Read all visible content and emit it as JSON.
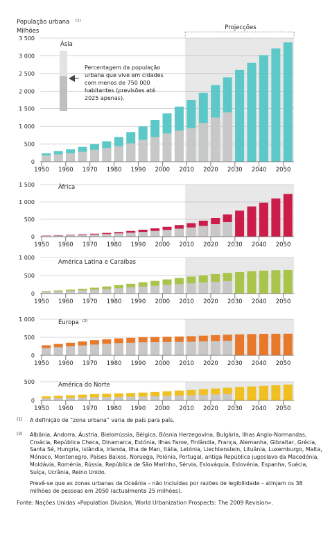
{
  "title": "População urbana",
  "title_note": "(1)",
  "unit": "Milhões",
  "projections_label": "Projecções",
  "colors": {
    "grey": "#c8c8c8",
    "shade": "#e8e8e8",
    "legend_light": "#e3e3e3",
    "legend_dark": "#bfbfbf"
  },
  "legend_text": [
    "Percentagem da população",
    "urbana que vive em cidades",
    "com menos de 750 000",
    "habitantes (previsões até",
    "2025 apenas)."
  ],
  "chart_data": [
    {
      "type": "bar",
      "title": "Ásia",
      "color": "#5cc8c8",
      "x": [
        1950,
        1955,
        1960,
        1965,
        1970,
        1975,
        1980,
        1985,
        1990,
        1995,
        2000,
        2005,
        2010,
        2015,
        2020,
        2025,
        2030,
        2035,
        2040,
        2045,
        2050
      ],
      "series": [
        {
          "values": [
            240,
            300,
            350,
            420,
            500,
            580,
            700,
            840,
            1000,
            1180,
            1370,
            1560,
            1750,
            1950,
            2170,
            2390,
            2600,
            2800,
            3020,
            3210,
            3380
          ]
        },
        {
          "values": [
            180,
            210,
            240,
            280,
            340,
            390,
            440,
            520,
            620,
            700,
            800,
            880,
            950,
            1100,
            1250,
            1400,
            null,
            null,
            null,
            null,
            null
          ]
        }
      ],
      "ylim": [
        0,
        3500
      ],
      "yticks": [
        "0",
        "500",
        "1 000",
        "1 500",
        "2 000",
        "2 500",
        "3 000",
        "3 500"
      ],
      "xticks": [
        "1950",
        "1960",
        "1970",
        "1980",
        "1990",
        "2000",
        "2010",
        "2020",
        "2030",
        "2040",
        "2050"
      ]
    },
    {
      "type": "bar",
      "title": "África",
      "color": "#cc1d4a",
      "x": [
        1950,
        1955,
        1960,
        1965,
        1970,
        1975,
        1980,
        1985,
        1990,
        1995,
        2000,
        2005,
        2010,
        2015,
        2020,
        2025,
        2030,
        2035,
        2040,
        2045,
        2050
      ],
      "series": [
        {
          "values": [
            33,
            42,
            53,
            69,
            85,
            107,
            133,
            165,
            200,
            240,
            285,
            335,
            390,
            460,
            540,
            640,
            750,
            870,
            980,
            1100,
            1230
          ]
        },
        {
          "values": [
            25,
            30,
            38,
            50,
            62,
            77,
            95,
            115,
            138,
            165,
            195,
            230,
            265,
            310,
            360,
            420,
            null,
            null,
            null,
            null,
            null
          ]
        }
      ],
      "ylim": [
        0,
        1500
      ],
      "yticks": [
        "0",
        "500",
        "1 000",
        "1 500"
      ],
      "xticks": [
        "1950",
        "1960",
        "1970",
        "1980",
        "1990",
        "2000",
        "2010",
        "2020",
        "2030",
        "2040",
        "2050"
      ]
    },
    {
      "type": "bar",
      "title": "América Latina e Caraíbas",
      "color": "#a8c44a",
      "x": [
        1950,
        1955,
        1960,
        1965,
        1970,
        1975,
        1980,
        1985,
        1990,
        1995,
        2000,
        2005,
        2010,
        2015,
        2020,
        2025,
        2030,
        2035,
        2040,
        2045,
        2050
      ],
      "series": [
        {
          "values": [
            70,
            88,
            108,
            134,
            163,
            197,
            234,
            273,
            313,
            352,
            393,
            433,
            470,
            505,
            540,
            570,
            596,
            618,
            635,
            648,
            656
          ]
        },
        {
          "values": [
            50,
            62,
            75,
            90,
            108,
            128,
            150,
            172,
            195,
            218,
            240,
            263,
            283,
            305,
            325,
            345,
            null,
            null,
            null,
            null,
            null
          ]
        }
      ],
      "ylim": [
        0,
        1000
      ],
      "yticks": [
        "0",
        "500",
        "1 000"
      ],
      "xticks": [
        "1950",
        "1960",
        "1970",
        "1980",
        "1990",
        "2000",
        "2010",
        "2020",
        "2030",
        "2040",
        "2050"
      ]
    },
    {
      "type": "bar",
      "title": "Europa",
      "title_note": "(2)",
      "color": "#e8782a",
      "x": [
        1950,
        1955,
        1960,
        1965,
        1970,
        1975,
        1980,
        1985,
        1990,
        1995,
        2000,
        2005,
        2010,
        2015,
        2020,
        2025,
        2030,
        2035,
        2040,
        2045,
        2050
      ],
      "series": [
        {
          "values": [
            280,
            315,
            350,
            385,
            420,
            445,
            470,
            485,
            505,
            510,
            515,
            522,
            530,
            545,
            560,
            572,
            582,
            590,
            595,
            598,
            600
          ]
        },
        {
          "values": [
            200,
            225,
            250,
            275,
            300,
            320,
            340,
            350,
            362,
            365,
            368,
            372,
            378,
            388,
            398,
            405,
            null,
            null,
            null,
            null,
            null
          ]
        }
      ],
      "ylim": [
        0,
        1000
      ],
      "yticks": [
        "0",
        "500",
        "1 000"
      ],
      "xticks": [
        "1950",
        "1960",
        "1970",
        "1980",
        "1990",
        "2000",
        "2010",
        "2020",
        "2030",
        "2040",
        "2050"
      ]
    },
    {
      "type": "bar",
      "title": "América do Norte",
      "color": "#f0c020",
      "x": [
        1950,
        1955,
        1960,
        1965,
        1970,
        1975,
        1980,
        1985,
        1990,
        1995,
        2000,
        2005,
        2010,
        2015,
        2020,
        2025,
        2030,
        2035,
        2040,
        2045,
        2050
      ],
      "series": [
        {
          "values": [
            110,
            125,
            140,
            155,
            170,
            180,
            190,
            200,
            210,
            225,
            245,
            265,
            280,
            300,
            320,
            340,
            358,
            375,
            392,
            405,
            420
          ]
        },
        {
          "values": [
            55,
            62,
            70,
            78,
            85,
            90,
            95,
            100,
            105,
            112,
            122,
            132,
            140,
            150,
            160,
            170,
            null,
            null,
            null,
            null,
            null
          ]
        }
      ],
      "ylim": [
        0,
        500
      ],
      "yticks": [
        "0",
        "500"
      ],
      "xticks": [
        "1950",
        "1960",
        "1970",
        "1980",
        "1990",
        "2000",
        "2010",
        "2020",
        "2030",
        "2040",
        "2050"
      ]
    }
  ],
  "notes": {
    "n1_mark": "(1)",
    "n1_text": "A definição de “zona urbana” varia de país para país.",
    "n2_mark": "(2)",
    "n2_text": "Albânia, Andorra, Áustria, Bielorrússia, Bélgica, Bósnia Herzegovina, Bulgária, Ilhas Anglo-Normandas, Croácia, República Checa, Dinamarca, Estónia, Ilhas Faroe, Finlândia, França, Alemanha, Gibraltar, Grécia, Santa Sé, Hungria, Islândia, Irlanda, Ilha de Man, Itália, Letónia, Liechtenstein, Lituânia, Luxemburgo, Malta, Mónaco, Montenegro, Países Baixos, Noruega, Polónia, Portugal, antiga República jugoslava da Macedónia, Moldávia, Roménia, Rússia, República de São Marinho, Sérvia, Eslováquia, Eslovénia, Espanha, Suécia, Suíça, Ucrânia, Reino Unido.",
    "oceania": "Prevê-se que as zonas urbanas da Oceânia – não incluídas por razões de legibilidade – atinjam os 38 milhões de pessoas em 2050 (actualmente 25 milhões).",
    "source": "Fonte: Nações Unidas «Population Division, World Urbanization Prospects: The 2009 Revision»."
  }
}
